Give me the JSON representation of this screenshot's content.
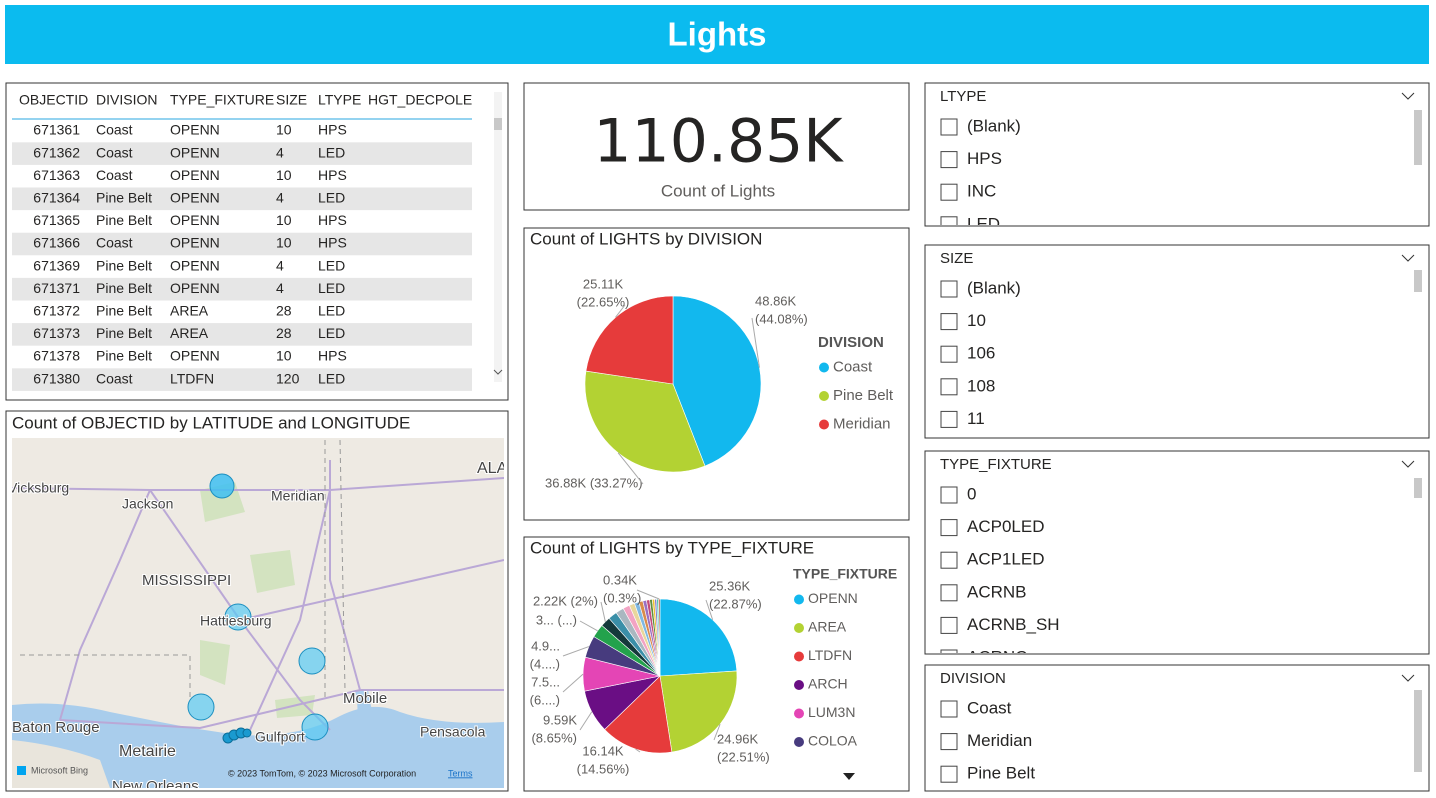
{
  "header": {
    "title": "Lights"
  },
  "table": {
    "columns": [
      "OBJECTID",
      "DIVISION",
      "TYPE_FIXTURE",
      "SIZE",
      "LTYPE",
      "HGT_DECPOLE"
    ],
    "rows": [
      [
        671361,
        "Coast",
        "OPENN",
        10,
        "HPS"
      ],
      [
        671362,
        "Coast",
        "OPENN",
        4,
        "LED"
      ],
      [
        671363,
        "Coast",
        "OPENN",
        10,
        "HPS"
      ],
      [
        671364,
        "Pine Belt",
        "OPENN",
        4,
        "LED"
      ],
      [
        671365,
        "Pine Belt",
        "OPENN",
        10,
        "HPS"
      ],
      [
        671366,
        "Coast",
        "OPENN",
        10,
        "HPS"
      ],
      [
        671369,
        "Pine Belt",
        "OPENN",
        4,
        "LED"
      ],
      [
        671371,
        "Pine Belt",
        "OPENN",
        4,
        "LED"
      ],
      [
        671372,
        "Pine Belt",
        "AREA",
        28,
        "LED"
      ],
      [
        671373,
        "Pine Belt",
        "AREA",
        28,
        "LED"
      ],
      [
        671378,
        "Pine Belt",
        "OPENN",
        10,
        "HPS"
      ],
      [
        671380,
        "Coast",
        "LTDFN",
        120,
        "LED"
      ]
    ]
  },
  "kpi": {
    "value": "110.85K",
    "label": "Count of Lights"
  },
  "map": {
    "title": "Count of OBJECTID by LATITUDE and LONGITUDE",
    "places": [
      "Vicksburg",
      "Jackson",
      "Meridian",
      "ALABAMA",
      "MISSISSIPPI",
      "Hattiesburg",
      "Mobile",
      "Baton Rouge",
      "Metairie",
      "Gulfport",
      "Pensacola",
      "New Orleans"
    ],
    "provider": "Microsoft Bing",
    "attribution": "© 2023 TomTom, © 2023 Microsoft Corporation",
    "terms": "Terms"
  },
  "chart_data": [
    {
      "type": "pie",
      "title": "Count of LIGHTS by DIVISION",
      "legend_title": "DIVISION",
      "categories": [
        "Coast",
        "Pine Belt",
        "Meridian"
      ],
      "values": [
        48.86,
        36.88,
        25.11
      ],
      "value_labels": [
        [
          "48.86K",
          "(44.08%)"
        ],
        [
          "36.88K (33.27%)"
        ],
        [
          "25.11K",
          "(22.65%)"
        ]
      ],
      "colors": [
        "#12B8EE",
        "#B3D233",
        "#E63B3B"
      ]
    },
    {
      "type": "pie",
      "title": "Count of LIGHTS by TYPE_FIXTURE",
      "legend_title": "TYPE_FIXTURE",
      "categories": [
        "OPENN",
        "AREA",
        "LTDFN",
        "ARCH",
        "LUM3N",
        "COLOA",
        null,
        null,
        null,
        null,
        null,
        null,
        null,
        null,
        null,
        null,
        null,
        null,
        null,
        null,
        null
      ],
      "values": [
        25.36,
        24.96,
        16.14,
        9.59,
        7.5,
        4.9,
        3,
        2.22,
        2.0,
        1.8,
        1.5,
        1.2,
        1.0,
        0.9,
        0.8,
        0.7,
        0.6,
        0.5,
        0.45,
        0.4,
        0.34
      ],
      "value_labels": [
        [
          "25.36K",
          "(22.87%)"
        ],
        [
          "24.96K",
          "(22.51%)"
        ],
        [
          "16.14K",
          "(14.56%)"
        ],
        [
          "9.59K",
          "(8.65%)"
        ],
        [
          "7.5...",
          "(6....)"
        ],
        [
          "4.9...",
          "(4....)"
        ],
        [
          "3... (...)"
        ],
        [
          "2.22K (2%)"
        ],
        null,
        null,
        null,
        null,
        null,
        null,
        null,
        null,
        null,
        null,
        null,
        null,
        [
          "0.34K",
          "(0.3%)"
        ]
      ],
      "colors": [
        "#12B8EE",
        "#B3D233",
        "#E63B3B",
        "#6A0E84",
        "#E445B5",
        "#473B7E",
        "#23A24C",
        "#14393B",
        "#3A8FA8",
        "#A9B7C0",
        "#F2A3C3",
        "#E9D79C",
        "#7FB8E3",
        "#D98B4B",
        "#9B70C2",
        "#C44C7A",
        "#5E8F3E",
        "#F0C030",
        "#8080D0",
        "#50C8B0",
        "#B05030"
      ]
    }
  ],
  "slicers": [
    {
      "title": "LTYPE",
      "items": [
        "(Blank)",
        "HPS",
        "INC",
        "LED"
      ]
    },
    {
      "title": "SIZE",
      "items": [
        "(Blank)",
        "10",
        "106",
        "108",
        "11"
      ]
    },
    {
      "title": "TYPE_FIXTURE",
      "items": [
        "0",
        "ACP0LED",
        "ACP1LED",
        "ACRNB",
        "ACRNB_SH",
        "ACRNC"
      ]
    },
    {
      "title": "DIVISION",
      "items": [
        "Coast",
        "Meridian",
        "Pine Belt"
      ]
    }
  ]
}
